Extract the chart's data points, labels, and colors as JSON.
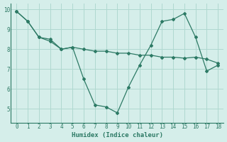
{
  "line1_x": [
    0,
    1,
    2,
    3,
    4,
    5,
    6,
    7,
    8,
    9,
    10,
    11,
    12,
    13,
    14,
    15,
    16,
    17,
    18
  ],
  "line1_y": [
    9.9,
    9.4,
    8.6,
    8.5,
    8.0,
    8.1,
    6.5,
    5.2,
    5.1,
    4.8,
    6.1,
    7.2,
    8.2,
    9.4,
    9.5,
    9.8,
    8.6,
    6.9,
    7.2
  ],
  "line2_x": [
    0,
    1,
    2,
    3,
    4,
    5,
    6,
    7,
    8,
    9,
    10,
    11,
    12,
    13,
    14,
    15,
    16,
    17,
    18
  ],
  "line2_y": [
    9.9,
    9.4,
    8.6,
    8.4,
    8.0,
    8.1,
    8.0,
    7.9,
    7.9,
    7.8,
    7.8,
    7.7,
    7.7,
    7.6,
    7.6,
    7.55,
    7.6,
    7.5,
    7.3
  ],
  "line_color": "#2d7a65",
  "bg_color": "#d5eeea",
  "grid_color": "#afd8d0",
  "xlabel": "Humidex (Indice chaleur)",
  "ylim": [
    4.3,
    10.3
  ],
  "xlim": [
    -0.5,
    18.5
  ],
  "yticks": [
    5,
    6,
    7,
    8,
    9,
    10
  ],
  "xticks": [
    0,
    1,
    2,
    3,
    4,
    5,
    6,
    7,
    8,
    9,
    10,
    11,
    12,
    13,
    14,
    15,
    16,
    17,
    18
  ],
  "tick_fontsize": 5.5,
  "xlabel_fontsize": 6.5
}
